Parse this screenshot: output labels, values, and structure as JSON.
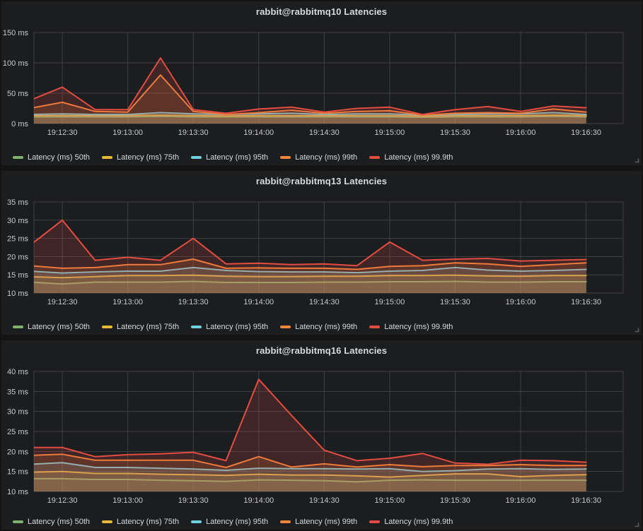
{
  "colors": {
    "page_bg": "#141415",
    "panel_bg": "#1c1d1f",
    "grid": "#3f4042",
    "tick_text": "#c8c9ca",
    "title_text": "#d8d9da",
    "series_green": "#7EB26D",
    "series_yellow": "#EAB839",
    "series_cyan": "#6ED0E0",
    "series_orange": "#EF843C",
    "series_red": "#E24D42"
  },
  "chart_data": [
    {
      "type": "line",
      "title": "rabbit@rabbitmq10 Latencies",
      "ylim": [
        0,
        150
      ],
      "y_tick_values": [
        0,
        50,
        100,
        150
      ],
      "y_tick_labels": [
        "0 ms",
        "50 ms",
        "100 ms",
        "150 ms"
      ],
      "x_domain": [
        "19:12:17",
        "19:16:47"
      ],
      "x_tick_labels": [
        "19:12:30",
        "19:13:00",
        "19:13:30",
        "19:14:00",
        "19:14:30",
        "19:15:00",
        "19:15:30",
        "19:16:00",
        "19:16:30"
      ],
      "x": [
        "19:12:15",
        "19:12:30",
        "19:12:45",
        "19:13:00",
        "19:13:15",
        "19:13:30",
        "19:13:45",
        "19:14:00",
        "19:14:15",
        "19:14:30",
        "19:14:45",
        "19:15:00",
        "19:15:15",
        "19:15:30",
        "19:15:45",
        "19:16:00",
        "19:16:15",
        "19:16:30"
      ],
      "series": [
        {
          "name": "Latency (ms) 50th",
          "color": "#7EB26D",
          "values": [
            11,
            11,
            11,
            11,
            12,
            11,
            11,
            11,
            11,
            11,
            11,
            11,
            10.5,
            11,
            11,
            11,
            12,
            11
          ]
        },
        {
          "name": "Latency (ms) 75th",
          "color": "#EAB839",
          "values": [
            13,
            13,
            13,
            13,
            14,
            13,
            12.5,
            13,
            13,
            13,
            13,
            13,
            12,
            13,
            13,
            13,
            14,
            13
          ]
        },
        {
          "name": "Latency (ms) 95th",
          "color": "#6ED0E0",
          "values": [
            15,
            16,
            15,
            15,
            18,
            16,
            15,
            16,
            17,
            15,
            16,
            16,
            14,
            15,
            16,
            16,
            18,
            15
          ]
        },
        {
          "name": "Latency (ms) 99th",
          "color": "#EF843C",
          "values": [
            25,
            35,
            20,
            19,
            80,
            20,
            15,
            18,
            22,
            17,
            20,
            21,
            14,
            17,
            18,
            17,
            24,
            19
          ]
        },
        {
          "name": "Latency (ms) 99.9th",
          "color": "#E24D42",
          "values": [
            38,
            60,
            23,
            23,
            108,
            23,
            17,
            24,
            27,
            19,
            25,
            27,
            15,
            23,
            28,
            20,
            29,
            26
          ]
        }
      ]
    },
    {
      "type": "line",
      "title": "rabbit@rabbitmq13 Latencies",
      "ylim": [
        10,
        35
      ],
      "y_tick_values": [
        10,
        15,
        20,
        25,
        30,
        35
      ],
      "y_tick_labels": [
        "10 ms",
        "15 ms",
        "20 ms",
        "25 ms",
        "30 ms",
        "35 ms"
      ],
      "x_domain": [
        "19:12:17",
        "19:16:47"
      ],
      "x_tick_labels": [
        "19:12:30",
        "19:13:00",
        "19:13:30",
        "19:14:00",
        "19:14:30",
        "19:15:00",
        "19:15:30",
        "19:16:00",
        "19:16:30"
      ],
      "x": [
        "19:12:15",
        "19:12:30",
        "19:12:45",
        "19:13:00",
        "19:13:15",
        "19:13:30",
        "19:13:45",
        "19:14:00",
        "19:14:15",
        "19:14:30",
        "19:14:45",
        "19:15:00",
        "19:15:15",
        "19:15:30",
        "19:15:45",
        "19:16:00",
        "19:16:15",
        "19:16:30"
      ],
      "series": [
        {
          "name": "Latency (ms) 50th",
          "color": "#7EB26D",
          "values": [
            13,
            12.5,
            13,
            13,
            13,
            13.2,
            12.9,
            12.9,
            12.9,
            13,
            13,
            13.1,
            13.1,
            13.2,
            13,
            13,
            13.1,
            13.1
          ]
        },
        {
          "name": "Latency (ms) 75th",
          "color": "#EAB839",
          "values": [
            14.5,
            14.2,
            14.5,
            14.8,
            14.8,
            14.9,
            14.6,
            14.5,
            14.5,
            14.6,
            14.6,
            14.8,
            14.8,
            14.9,
            14.7,
            14.6,
            14.8,
            14.8
          ]
        },
        {
          "name": "Latency (ms) 95th",
          "color": "#6ED0E0",
          "values": [
            16,
            15.5,
            15.8,
            16,
            16,
            17,
            16.2,
            15.9,
            15.8,
            15.8,
            15.6,
            16,
            16.2,
            17,
            16.3,
            16,
            16.2,
            16.5
          ]
        },
        {
          "name": "Latency (ms) 99th",
          "color": "#EF843C",
          "values": [
            17.5,
            16.8,
            17,
            17.8,
            17.8,
            19.3,
            16.8,
            16.9,
            16.8,
            16.8,
            16.5,
            17.3,
            17.5,
            18.3,
            18,
            17.3,
            17.8,
            18.3
          ]
        },
        {
          "name": "Latency (ms) 99.9th",
          "color": "#E24D42",
          "values": [
            23,
            30,
            19,
            19.8,
            19,
            25,
            18,
            18.2,
            17.8,
            18,
            17.5,
            24,
            19,
            19.3,
            19.5,
            18.8,
            19,
            19.2
          ]
        }
      ]
    },
    {
      "type": "line",
      "title": "rabbit@rabbitmq16 Latencies",
      "ylim": [
        10,
        40
      ],
      "y_tick_values": [
        10,
        15,
        20,
        25,
        30,
        35,
        40
      ],
      "y_tick_labels": [
        "10 ms",
        "15 ms",
        "20 ms",
        "25 ms",
        "30 ms",
        "35 ms",
        "40 ms"
      ],
      "x_domain": [
        "19:12:17",
        "19:16:47"
      ],
      "x_tick_labels": [
        "19:12:30",
        "19:13:00",
        "19:13:30",
        "19:14:00",
        "19:14:30",
        "19:15:00",
        "19:15:30",
        "19:16:00",
        "19:16:30"
      ],
      "x": [
        "19:12:15",
        "19:12:30",
        "19:12:45",
        "19:13:00",
        "19:13:15",
        "19:13:30",
        "19:13:45",
        "19:14:00",
        "19:14:15",
        "19:14:30",
        "19:14:45",
        "19:15:00",
        "19:15:15",
        "19:15:30",
        "19:15:45",
        "19:16:00",
        "19:16:15",
        "19:16:30"
      ],
      "series": [
        {
          "name": "Latency (ms) 50th",
          "color": "#7EB26D",
          "values": [
            13.2,
            13.2,
            13,
            13,
            12.8,
            12.7,
            12.5,
            12.9,
            12.8,
            12.7,
            12.4,
            12.8,
            12.9,
            12.8,
            12.8,
            12.8,
            12.8,
            12.8
          ]
        },
        {
          "name": "Latency (ms) 75th",
          "color": "#EAB839",
          "values": [
            14.8,
            15,
            14.5,
            14.5,
            14.3,
            14.2,
            14,
            14.3,
            14.1,
            14.1,
            13.9,
            13.6,
            14,
            14.4,
            14.4,
            13.7,
            14,
            14.2
          ]
        },
        {
          "name": "Latency (ms) 95th",
          "color": "#6ED0E0",
          "values": [
            16.8,
            17.2,
            16,
            16,
            15.8,
            15.6,
            15.3,
            15.8,
            15.7,
            15.7,
            15.6,
            15.7,
            15,
            15.2,
            15.6,
            15.7,
            15.5,
            15.6
          ]
        },
        {
          "name": "Latency (ms) 99th",
          "color": "#EF843C",
          "values": [
            19,
            19.3,
            17.8,
            17.8,
            17.8,
            17.8,
            16,
            18.7,
            16.1,
            16.9,
            16.1,
            16.7,
            16.2,
            16.5,
            16.5,
            16.7,
            16.5,
            16.5
          ]
        },
        {
          "name": "Latency (ms) 99.9th",
          "color": "#E24D42",
          "values": [
            21,
            21,
            18.7,
            19.2,
            19.4,
            19.8,
            17.7,
            38,
            29,
            20.3,
            17.7,
            18.3,
            19.5,
            17.1,
            16.8,
            17.8,
            17.7,
            17.3
          ]
        }
      ]
    }
  ]
}
